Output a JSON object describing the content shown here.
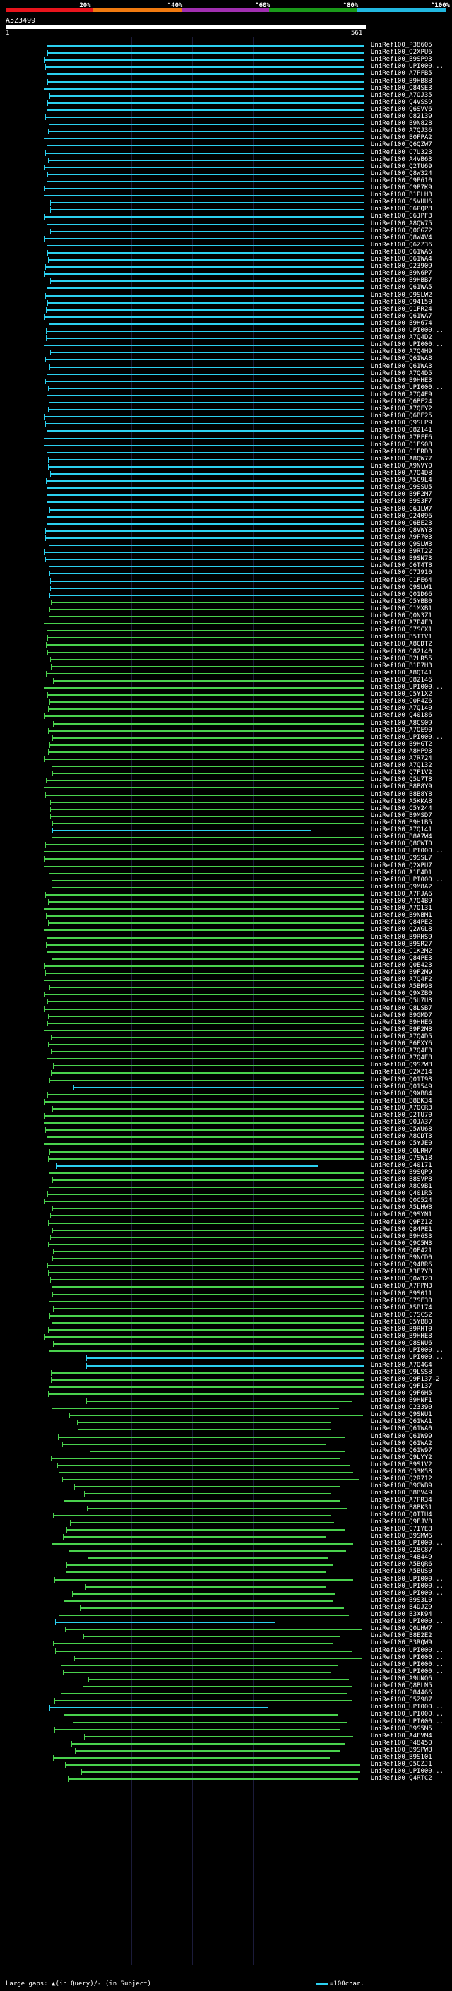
{
  "scale": {
    "labels": [
      "20%",
      "^40%",
      "^60%",
      "^80%",
      "^100%"
    ],
    "colors": [
      "#e8141c",
      "#f07a10",
      "#a12fb0",
      "#1a9a1a",
      "#22b8e0"
    ]
  },
  "query": {
    "id": "A5Z3499",
    "start": "1",
    "end": "561"
  },
  "colors": {
    "cyan": "#2bd0f0",
    "green": "#49d14d",
    "purple": "#b43ad6"
  },
  "rows": [
    "UniRef100_P38605",
    "UniRef100_Q2XPU6",
    "UniRef100_B9SP93",
    "UniRef100_UPI000...",
    "UniRef100_A7PFB5",
    "UniRef100_B9HB88",
    "UniRef100_Q84SE3",
    "UniRef100_A7QJ35",
    "UniRef100_Q4VSS9",
    "UniRef100_Q6SVV6",
    "UniRef100_O82139",
    "UniRef100_B9N828",
    "UniRef100_A7QJ36",
    "UniRef100_B0FPA2",
    "UniRef100_Q6QZW7",
    "UniRef100_C7U323",
    "UniRef100_A4VB63",
    "UniRef100_Q2TU69",
    "UniRef100_Q8W324",
    "UniRef100_C9P610",
    "UniRef100_C9P7K9",
    "UniRef100_B1PLH3",
    "UniRef100_C5VUU6",
    "UniRef100_C6PQP8",
    "UniRef100_C6JPF3",
    "UniRef100_A8QW75",
    "UniRef100_Q0GGZ2",
    "UniRef100_Q8W4V4",
    "UniRef100_Q6ZZ36",
    "UniRef100_Q61WA6",
    "UniRef100_Q61WA4",
    "UniRef100_O23909",
    "UniRef100_B9N6P7",
    "UniRef100_B9HBB7",
    "UniRef100_Q61WA5",
    "UniRef100_Q9SLW2",
    "UniRef100_Q94150",
    "UniRef100_O1FR24",
    "UniRef100_Q61WA7",
    "UniRef100_B9H674",
    "UniRef100_UPI000...",
    "UniRef100_A7Q4D2",
    "UniRef100_UPI000...",
    "UniRef100_A7Q4H9",
    "UniRef100_Q61WA8",
    "UniRef100_Q61WA3",
    "UniRef100_A7Q4D5",
    "UniRef100_B9HHE3",
    "UniRef100_UPI000...",
    "UniRef100_A7Q4E9",
    "UniRef100_Q6BE24",
    "UniRef100_A7QFY2",
    "UniRef100_Q6BE25",
    "UniRef100_Q9SLP9",
    "UniRef100_O82141",
    "UniRef100_A7PFF6",
    "UniRef100_O1FS08",
    "UniRef100_O1FRD3",
    "UniRef100_A8QW77",
    "UniRef100_A9NVY0",
    "UniRef100_A7Q4D8",
    "UniRef100_A5C9L4",
    "UniRef100_Q9SSU5",
    "UniRef100_B9F2M7",
    "UniRef100_B9S3F7",
    "UniRef100_C6JLW7",
    "UniRef100_O24096",
    "UniRef100_Q6BE23",
    "UniRef100_Q8VWY3",
    "UniRef100_A9P703",
    "UniRef100_Q9SLW3",
    "UniRef100_B9RT22",
    "UniRef100_B9SN73",
    "UniRef100_C6T4T8",
    "UniRef100_C7J910",
    "UniRef100_C1FE64",
    "UniRef100_Q9SLW1",
    "UniRef100_Q01D66",
    "UniRef100_C5YBB0",
    "UniRef100_C1MXB1",
    "UniRef100_Q0N3Z1",
    "UniRef100_A7P4F3",
    "UniRef100_C7SCX1",
    "UniRef100_B5TTV1",
    "UniRef100_A8CDT2",
    "UniRef100_O82140",
    "UniRef100_B2LR55",
    "UniRef100_B1P7H3",
    "UniRef100_A8QT41",
    "UniRef100_O82146",
    "UniRef100_UPI000...",
    "UniRef100_C5Y1X2",
    "UniRef100_C0P4Z6",
    "UniRef100_A7Q140",
    "UniRef100_Q40186",
    "UniRef100_A8CS09",
    "UniRef100_A7QE90",
    "UniRef100_UPI000...",
    "UniRef100_B9HGT2",
    "UniRef100_A8HP93",
    "UniRef100_A7R724",
    "UniRef100_A7Q132",
    "UniRef100_Q7F1V2",
    "UniRef100_Q5U7T8",
    "UniRef100_B8B8Y9",
    "UniRef100_B8B8Y8",
    "UniRef100_A5KKA8",
    "UniRef100_C5Y244",
    "UniRef100_B9MSD7",
    "UniRef100_B9H1B5",
    "UniRef100_A7Q141",
    "UniRef100_B8A7W4",
    "UniRef100_Q8GWT0",
    "UniRef100_UPI000...",
    "UniRef100_Q9SSL7",
    "UniRef100_Q2XPU7",
    "UniRef100_A1E4D1",
    "UniRef100_UPI000...",
    "UniRef100_Q9M8A2",
    "UniRef100_A7PJA6",
    "UniRef100_A7Q4B9",
    "UniRef100_A7Q131",
    "UniRef100_B9NBM1",
    "UniRef100_Q84PE2",
    "UniRef100_Q2WGL8",
    "UniRef100_B9RHS9",
    "UniRef100_B9SR27",
    "UniRef100_C1K2M2",
    "UniRef100_Q84PE3",
    "UniRef100_Q0E423",
    "UniRef100_B9F2M9",
    "UniRef100_A7Q4F2",
    "UniRef100_A5BR98",
    "UniRef100_Q9XZB0",
    "UniRef100_Q5U7U8",
    "UniRef100_Q8LSB7",
    "UniRef100_B9GMD7",
    "UniRef100_B9HHE6",
    "UniRef100_B9F2M8",
    "UniRef100_A7Q4D5",
    "UniRef100_B6EXY6",
    "UniRef100_A7Q4F3",
    "UniRef100_A7Q4E8",
    "UniRef100_Q9SZW8",
    "UniRef100_Q2XZ14",
    "UniRef100_Q01T98",
    "UniRef100_Q01549",
    "UniRef100_Q9XB84",
    "UniRef100_B8BK34",
    "UniRef100_A7QCR3",
    "UniRef100_Q2TU70",
    "UniRef100_Q0JA37",
    "UniRef100_C5WU68",
    "UniRef100_A8CDT3",
    "UniRef100_C5YJE0",
    "UniRef100_Q0LRH7",
    "UniRef100_Q7SW18",
    "UniRef100_Q40171",
    "UniRef100_B9SQP9",
    "UniRef100_B8SVP8",
    "UniRef100_A8C9B1",
    "UniRef100_Q401R5",
    "UniRef100_Q0C524",
    "UniRef100_A5LHW8",
    "UniRef100_Q9SYN1",
    "UniRef100_Q9FZ12",
    "UniRef100_Q84PE1",
    "UniRef100_B9H6S3",
    "UniRef100_Q9C5M3",
    "UniRef100_Q0E421",
    "UniRef100_B9NCD0",
    "UniRef100_Q94BR6",
    "UniRef100_A3E7Y8",
    "UniRef100_Q0W320",
    "UniRef100_A7PPM3",
    "UniRef100_B9S011",
    "UniRef100_C7SE30",
    "UniRef100_A5B174",
    "UniRef100_C7SCS2",
    "UniRef100_C5YB80",
    "UniRef100_B9RHT0",
    "UniRef100_B9HHE8",
    "UniRef100_Q8SNU6",
    "UniRef100_UPI000...",
    "UniRef100_UPI000...",
    "UniRef100_A7Q4G4",
    "UniRef100_Q9LSS8",
    "UniRef100_Q9F137-2",
    "UniRef100_Q9F137",
    "UniRef100_Q9F6H5",
    "UniRef100_B9HNF1",
    "UniRef100_O23390",
    "UniRef100_Q9SNU1",
    "UniRef100_Q61WA1",
    "UniRef100_Q61WA0",
    "UniRef100_Q61W99",
    "UniRef100_Q61WA2",
    "UniRef100_Q61W97",
    "UniRef100_Q9LYY2",
    "UniRef100_B9S1V2",
    "UniRef100_Q53M58",
    "UniRef100_Q2R712",
    "UniRef100_B9GWB9",
    "UniRef100_B8BV49",
    "UniRef100_A7PR34",
    "UniRef100_B8BK31",
    "UniRef100_Q0ITU4",
    "UniRef100_Q9FJV8",
    "UniRef100_C7IYE8",
    "UniRef100_B9SMW6",
    "UniRef100_UPI000...",
    "UniRef100_Q28C87",
    "UniRef100_P48449",
    "UniRef100_A5BQR6",
    "UniRef100_A5BUS0",
    "UniRef100_UPI000...",
    "UniRef100_UPI000...",
    "UniRef100_UPI000...",
    "UniRef100_B9S3L0",
    "UniRef100_B4DJZ9",
    "UniRef100_B3XK94",
    "UniRef100_UPI000...",
    "UniRef100_Q0UHW7",
    "UniRef100_B8E2E2",
    "UniRef100_B3RQW9",
    "UniRef100_UPI000...",
    "UniRef100_UPI000...",
    "UniRef100_UPI000...",
    "UniRef100_UPI000...",
    "UniRef100_A9UNQ6",
    "UniRef100_Q8BLN5",
    "UniRef100_P84466",
    "UniRef100_C5Z987",
    "UniRef100_UPI000...",
    "UniRef100_UPI000...",
    "UniRef100_UPI000...",
    "UniRef100_B9S5M5",
    "UniRef100_A4FVM4",
    "UniRef100_P48450",
    "UniRef100_B9SPW8",
    "UniRef100_B9S101",
    "UniRef100_Q5CZJ1",
    "UniRef100_UPI000...",
    "UniRef100_Q4RTC2"
  ],
  "legend": {
    "left": "Large gaps: ▲(in Query)/- (in Subject)",
    "right": "=100char."
  }
}
